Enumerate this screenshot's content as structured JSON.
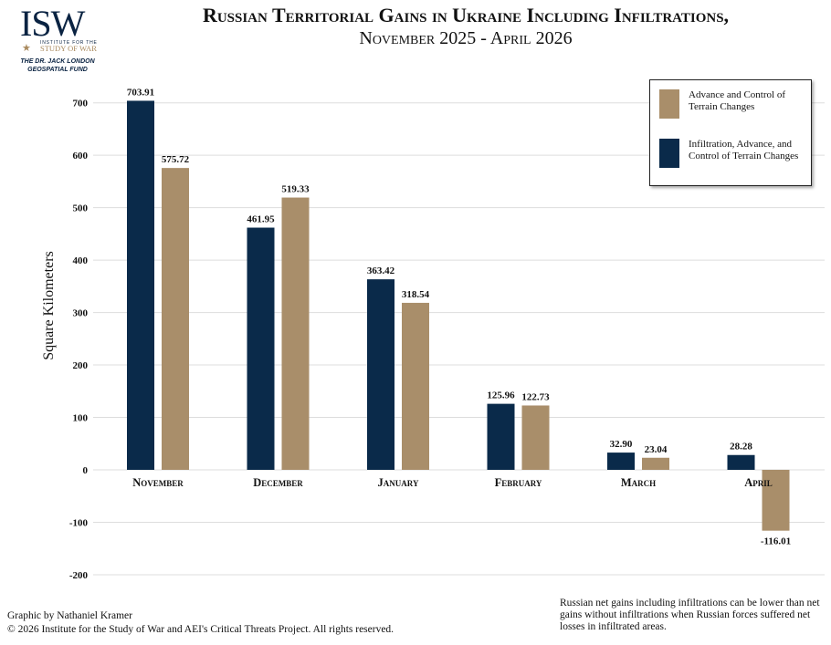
{
  "logo": {
    "mark": "ISW",
    "line1": "INSTITUTE FOR THE",
    "line2": "STUDY OF WAR",
    "fund_line1": "THE DR. JACK LONDON",
    "fund_line2": "GEOSPATIAL FUND"
  },
  "colors": {
    "infiltration": "#0a2a4a",
    "advance": "#a98e6a",
    "grid": "#dddddd"
  },
  "chart_data": {
    "type": "bar",
    "title": "Russian Territorial Gains in Ukraine Including Infiltrations,",
    "subtitle": "November 2025 - April 2026",
    "xlabel": "",
    "ylabel": "Square Kilometers",
    "ylim": [
      -200,
      700
    ],
    "yticks": [
      700,
      600,
      500,
      400,
      300,
      200,
      100,
      0,
      -100,
      -200
    ],
    "grid": true,
    "legend_position": "top-right",
    "categories": [
      "November",
      "December",
      "January",
      "February",
      "March",
      "April"
    ],
    "series": [
      {
        "name": "Infiltration, Advance, and Control of Terrain Changes",
        "color": "#0a2a4a",
        "values": [
          703.91,
          461.95,
          363.42,
          125.96,
          32.9,
          28.28
        ],
        "labels": [
          "703.91",
          "461.95",
          "363.42",
          "125.96",
          "32.90",
          "28.28"
        ]
      },
      {
        "name": "Advance and Control of Terrain Changes",
        "color": "#a98e6a",
        "values": [
          575.72,
          519.33,
          318.54,
          122.73,
          23.04,
          -116.01
        ],
        "labels": [
          "575.72",
          "519.33",
          "318.54",
          "122.73",
          "23.04",
          "-116.01"
        ]
      }
    ]
  },
  "legend": {
    "item1": "Advance and Control of Terrain Changes",
    "item2": "Infiltration, Advance, and Control of Terrain Changes"
  },
  "credit": {
    "line1": "Graphic by Nathaniel Kramer",
    "line2": "© 2026 Institute for the Study of War and AEI's Critical Threats Project. All rights reserved."
  },
  "footnote": "Russian net gains including infiltrations can be lower than net gains without infiltrations when Russian forces suffered net losses in infiltrated areas."
}
